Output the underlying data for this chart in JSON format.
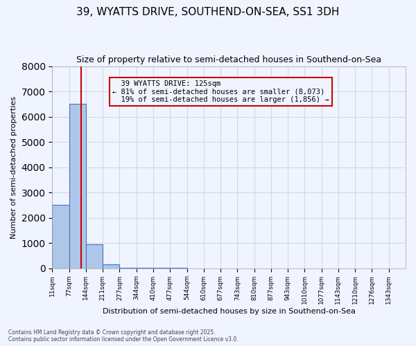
{
  "title": "39, WYATTS DRIVE, SOUTHEND-ON-SEA, SS1 3DH",
  "subtitle": "Size of property relative to semi-detached houses in Southend-on-Sea",
  "xlabel": "Distribution of semi-detached houses by size in Southend-on-Sea",
  "ylabel": "Number of semi-detached properties",
  "footer_line1": "Contains HM Land Registry data © Crown copyright and database right 2025.",
  "footer_line2": "Contains public sector information licensed under the Open Government Licence v3.0.",
  "bin_labels": [
    "11sqm",
    "77sqm",
    "144sqm",
    "211sqm",
    "277sqm",
    "344sqm",
    "410sqm",
    "477sqm",
    "544sqm",
    "610sqm",
    "677sqm",
    "743sqm",
    "810sqm",
    "877sqm",
    "943sqm",
    "1010sqm",
    "1077sqm",
    "1143sqm",
    "1210sqm",
    "1276sqm",
    "1343sqm"
  ],
  "bar_values": [
    2500,
    6500,
    950,
    150,
    30,
    10,
    5,
    3,
    2,
    1,
    1,
    0,
    0,
    0,
    0,
    0,
    0,
    0,
    0,
    0,
    0
  ],
  "bar_color": "#aec6e8",
  "bar_edgecolor": "#4472c4",
  "property_value": 125,
  "property_label": "39 WYATTS DRIVE: 125sqm",
  "pct_smaller": 81,
  "pct_larger": 19,
  "count_smaller": 8073,
  "count_larger": 1856,
  "vline_color": "#cc0000",
  "annotation_border_color": "#cc0000",
  "ylim": [
    0,
    8000
  ],
  "yticks": [
    0,
    1000,
    2000,
    3000,
    4000,
    5000,
    6000,
    7000,
    8000
  ],
  "grid_color": "#d0d8e8",
  "background_color": "#f0f4ff",
  "title_fontsize": 11,
  "subtitle_fontsize": 9
}
